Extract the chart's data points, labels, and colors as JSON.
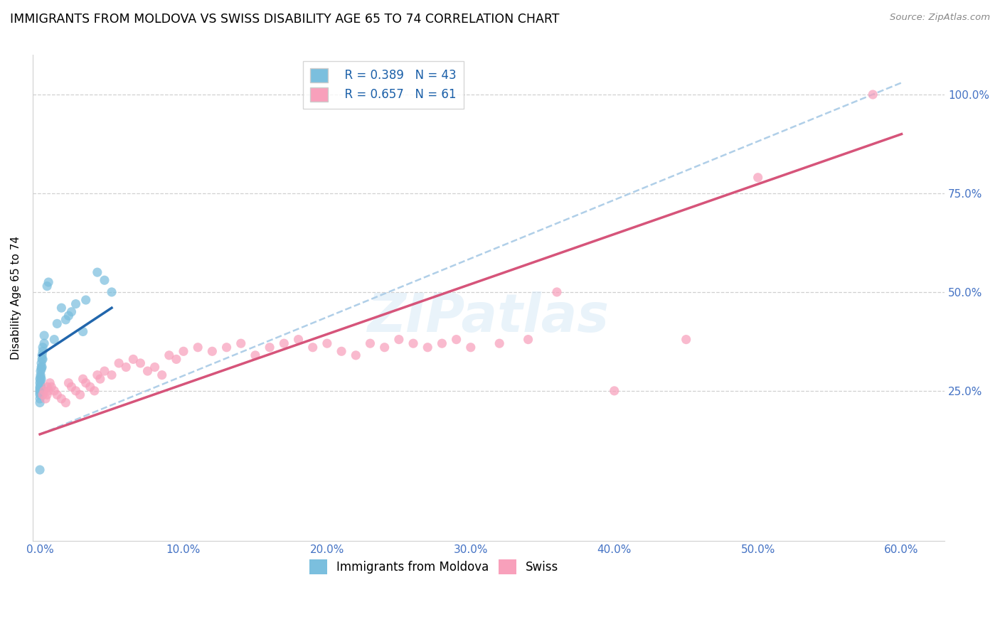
{
  "title": "IMMIGRANTS FROM MOLDOVA VS SWISS DISABILITY AGE 65 TO 74 CORRELATION CHART",
  "source": "Source: ZipAtlas.com",
  "ylabel_label": "Disability Age 65 to 74",
  "x_tick_labels": [
    "0.0%",
    "10.0%",
    "20.0%",
    "30.0%",
    "40.0%",
    "50.0%",
    "60.0%"
  ],
  "x_tick_values": [
    0.0,
    10.0,
    20.0,
    30.0,
    40.0,
    50.0,
    60.0
  ],
  "y_tick_labels": [
    "25.0%",
    "50.0%",
    "75.0%",
    "100.0%"
  ],
  "y_tick_values": [
    25.0,
    50.0,
    75.0,
    100.0
  ],
  "xlim": [
    -0.5,
    63
  ],
  "ylim": [
    -13,
    110
  ],
  "blue_R": 0.389,
  "blue_N": 43,
  "pink_R": 0.657,
  "pink_N": 61,
  "blue_color": "#7bbfde",
  "pink_color": "#f8a0bb",
  "blue_line_color": "#2166ac",
  "pink_line_color": "#d6547a",
  "dashed_line_color": "#b0cfe8",
  "watermark": "ZIPatlas",
  "legend_label_blue": "Immigrants from Moldova",
  "legend_label_pink": "Swiss",
  "blue_scatter_x": [
    0.0,
    0.0,
    0.0,
    0.0,
    0.0,
    0.0,
    0.0,
    0.0,
    0.0,
    0.0,
    0.05,
    0.05,
    0.05,
    0.05,
    0.05,
    0.05,
    0.1,
    0.1,
    0.1,
    0.1,
    0.1,
    0.15,
    0.15,
    0.15,
    0.2,
    0.2,
    0.2,
    0.3,
    0.3,
    0.5,
    0.6,
    1.0,
    1.2,
    1.5,
    1.8,
    2.0,
    2.2,
    2.5,
    3.0,
    3.2,
    4.0,
    4.5,
    5.0
  ],
  "blue_scatter_y": [
    28.0,
    27.0,
    26.0,
    25.5,
    25.0,
    24.5,
    24.0,
    23.0,
    22.0,
    5.0,
    30.0,
    29.0,
    28.5,
    27.5,
    26.5,
    25.5,
    32.0,
    31.0,
    30.5,
    28.0,
    26.0,
    34.0,
    33.0,
    31.0,
    36.0,
    35.0,
    33.0,
    39.0,
    37.0,
    51.5,
    52.5,
    38.0,
    42.0,
    46.0,
    43.0,
    44.0,
    45.0,
    47.0,
    40.0,
    48.0,
    55.0,
    53.0,
    50.0
  ],
  "pink_scatter_x": [
    0.2,
    0.3,
    0.4,
    0.5,
    0.5,
    0.6,
    0.7,
    0.8,
    1.0,
    1.2,
    1.5,
    1.8,
    2.0,
    2.2,
    2.5,
    2.8,
    3.0,
    3.2,
    3.5,
    3.8,
    4.0,
    4.2,
    4.5,
    5.0,
    5.5,
    6.0,
    6.5,
    7.0,
    7.5,
    8.0,
    8.5,
    9.0,
    9.5,
    10.0,
    11.0,
    12.0,
    13.0,
    14.0,
    15.0,
    16.0,
    17.0,
    18.0,
    19.0,
    20.0,
    21.0,
    22.0,
    23.0,
    24.0,
    25.0,
    26.0,
    27.0,
    28.0,
    29.0,
    30.0,
    32.0,
    34.0,
    36.0,
    40.0,
    45.0,
    50.0,
    58.0
  ],
  "pink_scatter_y": [
    24.0,
    25.0,
    23.0,
    24.0,
    26.0,
    25.0,
    27.0,
    26.0,
    25.0,
    24.0,
    23.0,
    22.0,
    27.0,
    26.0,
    25.0,
    24.0,
    28.0,
    27.0,
    26.0,
    25.0,
    29.0,
    28.0,
    30.0,
    29.0,
    32.0,
    31.0,
    33.0,
    32.0,
    30.0,
    31.0,
    29.0,
    34.0,
    33.0,
    35.0,
    36.0,
    35.0,
    36.0,
    37.0,
    34.0,
    36.0,
    37.0,
    38.0,
    36.0,
    37.0,
    35.0,
    34.0,
    37.0,
    36.0,
    38.0,
    37.0,
    36.0,
    37.0,
    38.0,
    36.0,
    37.0,
    38.0,
    50.0,
    25.0,
    38.0,
    79.0,
    100.0
  ],
  "blue_regline_x": [
    0.0,
    5.0
  ],
  "blue_regline_y": [
    34.0,
    46.0
  ],
  "pink_regline_x": [
    0.0,
    60.0
  ],
  "pink_regline_y": [
    14.0,
    90.0
  ],
  "dashed_line_x": [
    0.0,
    60.0
  ],
  "dashed_line_y": [
    14.0,
    103.0
  ]
}
